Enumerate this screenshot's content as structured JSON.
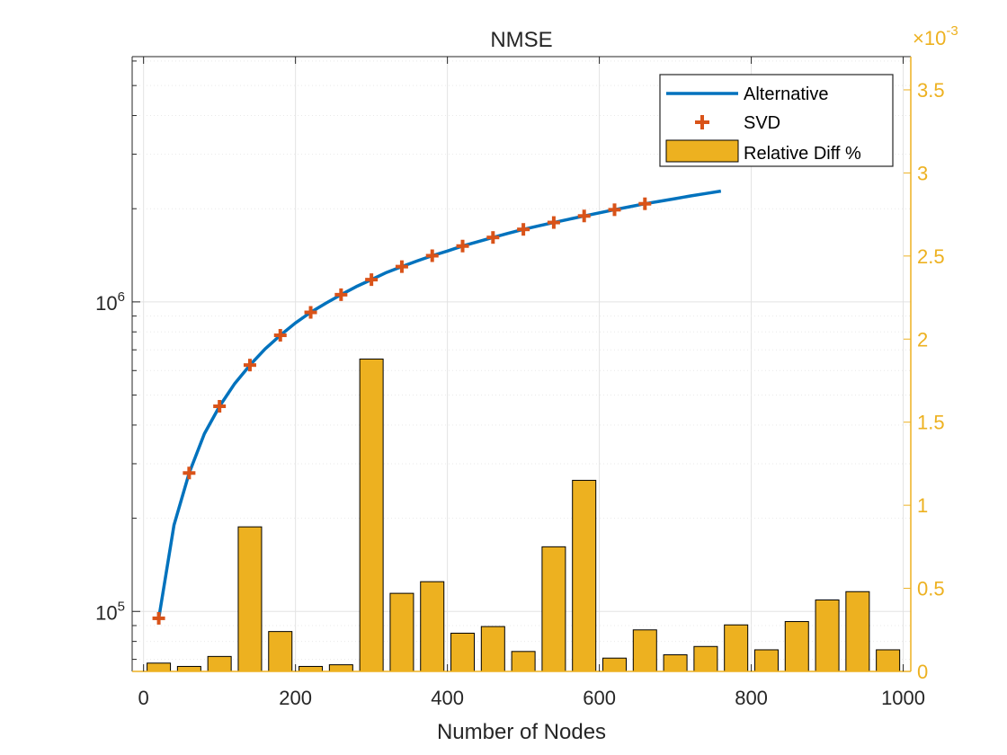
{
  "chart_data": {
    "type": "bar",
    "title": "NMSE",
    "xlabel": "Number of Nodes",
    "ylabel_left": "",
    "ylabel_right": "",
    "xlim": [
      -15,
      1010
    ],
    "x_ticks": [
      0,
      200,
      400,
      600,
      800,
      1000
    ],
    "y_left": {
      "scale": "log",
      "ylim": [
        64000,
        6200000
      ],
      "tick_values": [
        100000,
        1000000
      ],
      "tick_labels": [
        {
          "base": "10",
          "exp": "5"
        },
        {
          "base": "10",
          "exp": "6"
        }
      ]
    },
    "y_right": {
      "scale": "linear",
      "ylim": [
        0,
        0.0037
      ],
      "multiplier_label": {
        "prefix": "×10",
        "exp": "-3"
      },
      "tick_values": [
        0,
        0.0005,
        0.001,
        0.0015,
        0.002,
        0.0025,
        0.003,
        0.0035
      ],
      "tick_labels": [
        "0",
        "0.5",
        "1",
        "1.5",
        "2",
        "2.5",
        "3",
        "3.5"
      ]
    },
    "grid": true,
    "legend_position": "top-right",
    "series": [
      {
        "name": "Alternative",
        "type": "line",
        "axis": "left",
        "color": "#0072BD",
        "x": [
          20,
          40,
          60,
          80,
          100,
          120,
          140,
          160,
          180,
          200,
          220,
          240,
          260,
          280,
          300,
          320,
          340,
          360,
          380,
          400,
          420,
          440,
          460,
          480,
          500,
          520,
          540,
          560,
          580,
          600,
          620,
          640,
          660,
          680,
          700,
          720,
          740,
          760
        ],
        "y": [
          95000,
          190000,
          280000,
          375000,
          460000,
          545000,
          625000,
          705000,
          780000,
          855000,
          925000,
          990000,
          1055000,
          1120000,
          1180000,
          1245000,
          1300000,
          1355000,
          1410000,
          1460000,
          1515000,
          1565000,
          1615000,
          1665000,
          1715000,
          1760000,
          1805000,
          1850000,
          1895000,
          1940000,
          1985000,
          2030000,
          2075000,
          2115000,
          2155000,
          2200000,
          2240000,
          2280000
        ]
      },
      {
        "name": "SVD",
        "type": "scatter",
        "marker": "plus",
        "axis": "left",
        "color": "#D95319",
        "x": [
          20,
          60,
          100,
          140,
          180,
          220,
          260,
          300,
          340,
          380,
          420,
          460,
          500,
          540,
          580,
          620,
          660
        ],
        "y": [
          95000,
          280000,
          460000,
          625000,
          780000,
          925000,
          1055000,
          1180000,
          1300000,
          1410000,
          1515000,
          1615000,
          1715000,
          1805000,
          1895000,
          1985000,
          2075000
        ]
      },
      {
        "name": "Relative Diff %",
        "type": "bar",
        "axis": "right",
        "color": "#EDB120",
        "x": [
          20,
          60,
          100,
          140,
          180,
          220,
          260,
          300,
          340,
          380,
          420,
          460,
          500,
          540,
          580,
          620,
          660,
          700,
          740,
          780,
          820,
          860,
          900,
          940,
          980
        ],
        "values": [
          5e-05,
          3e-05,
          9e-05,
          0.00087,
          0.00024,
          3e-05,
          4e-05,
          0.00188,
          0.00047,
          0.00054,
          0.00023,
          0.00027,
          0.00012,
          0.00075,
          0.00115,
          8e-05,
          0.00025,
          0.0001,
          0.00015,
          0.00028,
          0.00013,
          0.0003,
          0.00043,
          0.00048,
          0.00013
        ]
      }
    ]
  }
}
